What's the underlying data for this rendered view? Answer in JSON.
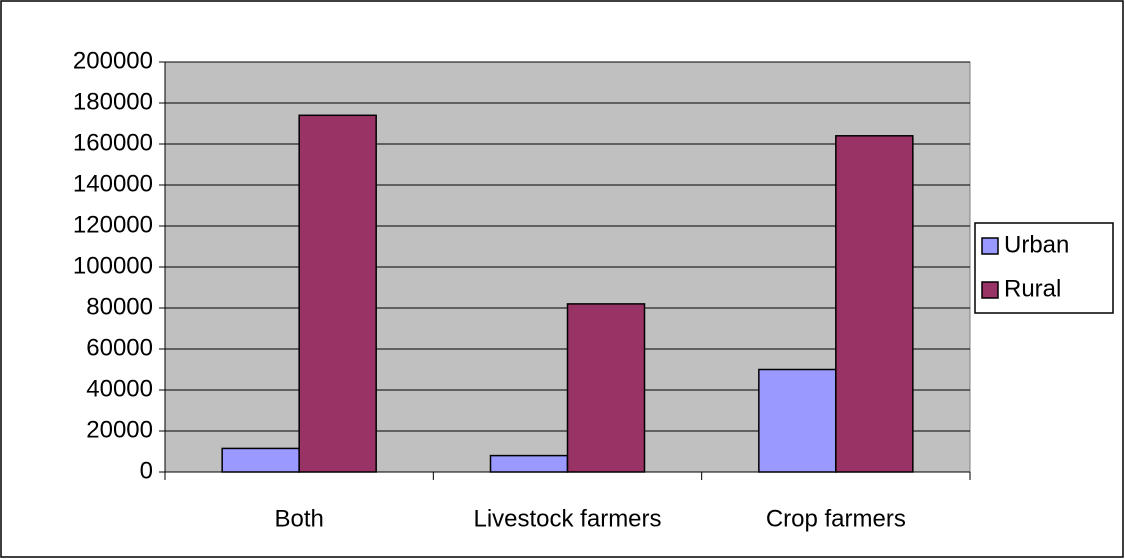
{
  "chart_data": {
    "type": "bar",
    "categories": [
      "Both",
      "Livestock farmers",
      "Crop farmers"
    ],
    "series": [
      {
        "name": "Urban",
        "color": "#9999ff",
        "values": [
          11500,
          8000,
          50000
        ]
      },
      {
        "name": "Rural",
        "color": "#993366",
        "values": [
          174000,
          82000,
          164000
        ]
      }
    ],
    "ylim": [
      0,
      200000
    ],
    "yticks": [
      0,
      20000,
      40000,
      60000,
      80000,
      100000,
      120000,
      140000,
      160000,
      180000,
      200000
    ],
    "grid": true,
    "legend": "right"
  }
}
